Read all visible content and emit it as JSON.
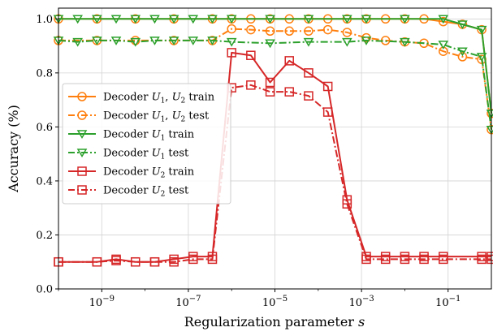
{
  "chart_data": {
    "type": "line",
    "xscale": "log",
    "xlim": [
      1e-10,
      1
    ],
    "ylim": [
      0,
      1.04
    ],
    "grid": true,
    "legend_position": "center-left",
    "xlabel": "Regularization parameter s",
    "ylabel": "Accuracy (%)",
    "xticks": [
      {
        "value": 1e-09,
        "base": "10",
        "exp": "−9"
      },
      {
        "value": 1e-07,
        "base": "10",
        "exp": "−7"
      },
      {
        "value": 1e-05,
        "base": "10",
        "exp": "−5"
      },
      {
        "value": 0.001,
        "base": "10",
        "exp": "−3"
      },
      {
        "value": 0.1,
        "base": "10",
        "exp": "−1"
      }
    ],
    "yticks": [
      "0.0",
      "0.2",
      "0.4",
      "0.6",
      "0.8",
      "1.0"
    ],
    "x": [
      1e-10,
      2.78e-10,
      7.74e-10,
      2.15e-09,
      5.99e-09,
      1.67e-08,
      4.64e-08,
      1.29e-07,
      3.59e-07,
      1e-06,
      2.78e-06,
      7.74e-06,
      2.15e-05,
      5.99e-05,
      0.000167,
      0.000464,
      0.00129,
      0.00359,
      0.01,
      0.0278,
      0.0774,
      0.215,
      0.599,
      1
    ],
    "series": [
      {
        "name": "Decoder U1,U2 train",
        "color": "#ff7f0e",
        "linestyle": "solid",
        "marker": "circle",
        "values": [
          1.0,
          null,
          1.0,
          null,
          1.0,
          null,
          1.0,
          null,
          1.0,
          1.0,
          1.0,
          1.0,
          1.0,
          1.0,
          1.0,
          1.0,
          1.0,
          1.0,
          1.0,
          1.0,
          0.99,
          0.98,
          0.96,
          0.65
        ]
      },
      {
        "name": "Decoder U1,U2 test",
        "color": "#ff7f0e",
        "linestyle": "dashdot",
        "marker": "circle",
        "values": [
          0.92,
          null,
          0.92,
          null,
          0.92,
          null,
          0.92,
          null,
          0.92,
          0.963,
          0.96,
          0.955,
          0.955,
          0.955,
          0.96,
          0.95,
          0.93,
          0.92,
          0.915,
          0.91,
          0.88,
          0.86,
          0.85,
          0.59
        ]
      },
      {
        "name": "Decoder U1 train",
        "color": "#2ca02c",
        "linestyle": "solid",
        "marker": "triangle-down",
        "values": [
          1.0,
          1.0,
          1.0,
          1.0,
          1.0,
          1.0,
          1.0,
          1.0,
          1.0,
          1.0,
          null,
          1.0,
          null,
          1.0,
          null,
          1.0,
          1.0,
          null,
          1.0,
          null,
          1.0,
          0.98,
          0.96,
          0.65
        ]
      },
      {
        "name": "Decoder U1 test",
        "color": "#2ca02c",
        "linestyle": "dashdot",
        "marker": "triangle-down",
        "values": [
          0.92,
          0.915,
          0.92,
          0.92,
          0.915,
          0.92,
          0.92,
          0.92,
          0.92,
          0.915,
          null,
          0.91,
          null,
          0.915,
          null,
          0.915,
          0.92,
          null,
          0.915,
          null,
          0.905,
          0.88,
          0.86,
          0.59
        ]
      },
      {
        "name": "Decoder U2 train",
        "color": "#d62728",
        "linestyle": "solid",
        "marker": "square",
        "values": [
          0.1,
          null,
          0.1,
          0.11,
          0.1,
          0.1,
          0.11,
          0.12,
          0.12,
          0.875,
          0.865,
          0.765,
          0.845,
          0.8,
          0.75,
          0.33,
          0.12,
          0.12,
          0.12,
          0.12,
          0.12,
          null,
          0.12,
          0.12
        ]
      },
      {
        "name": "Decoder U2 test",
        "color": "#d62728",
        "linestyle": "dashdot",
        "marker": "square",
        "values": [
          0.1,
          null,
          0.1,
          0.105,
          0.1,
          0.1,
          0.1,
          0.11,
          0.11,
          0.745,
          0.755,
          0.73,
          0.73,
          0.715,
          0.655,
          0.315,
          0.11,
          0.11,
          0.11,
          0.11,
          0.11,
          null,
          0.11,
          0.11
        ]
      }
    ]
  },
  "legend": {
    "items": [
      {
        "pre": "Decoder ",
        "sym1": "U",
        "sub1": "1",
        "mid": ", ",
        "sym2": "U",
        "sub2": "2",
        "post": " train"
      },
      {
        "pre": "Decoder ",
        "sym1": "U",
        "sub1": "1",
        "mid": ", ",
        "sym2": "U",
        "sub2": "2",
        "post": " test"
      },
      {
        "pre": "Decoder ",
        "sym1": "U",
        "sub1": "1",
        "mid": "",
        "sym2": "",
        "sub2": "",
        "post": " train"
      },
      {
        "pre": "Decoder ",
        "sym1": "U",
        "sub1": "1",
        "mid": "",
        "sym2": "",
        "sub2": "",
        "post": " test"
      },
      {
        "pre": "Decoder ",
        "sym1": "U",
        "sub1": "2",
        "mid": "",
        "sym2": "",
        "sub2": "",
        "post": " train"
      },
      {
        "pre": "Decoder ",
        "sym1": "U",
        "sub1": "2",
        "mid": "",
        "sym2": "",
        "sub2": "",
        "post": " test"
      }
    ]
  },
  "labels": {
    "xlabel_text": "Regularization parameter ",
    "xlabel_var": "s",
    "ylabel_text": "Accuracy (%)"
  }
}
